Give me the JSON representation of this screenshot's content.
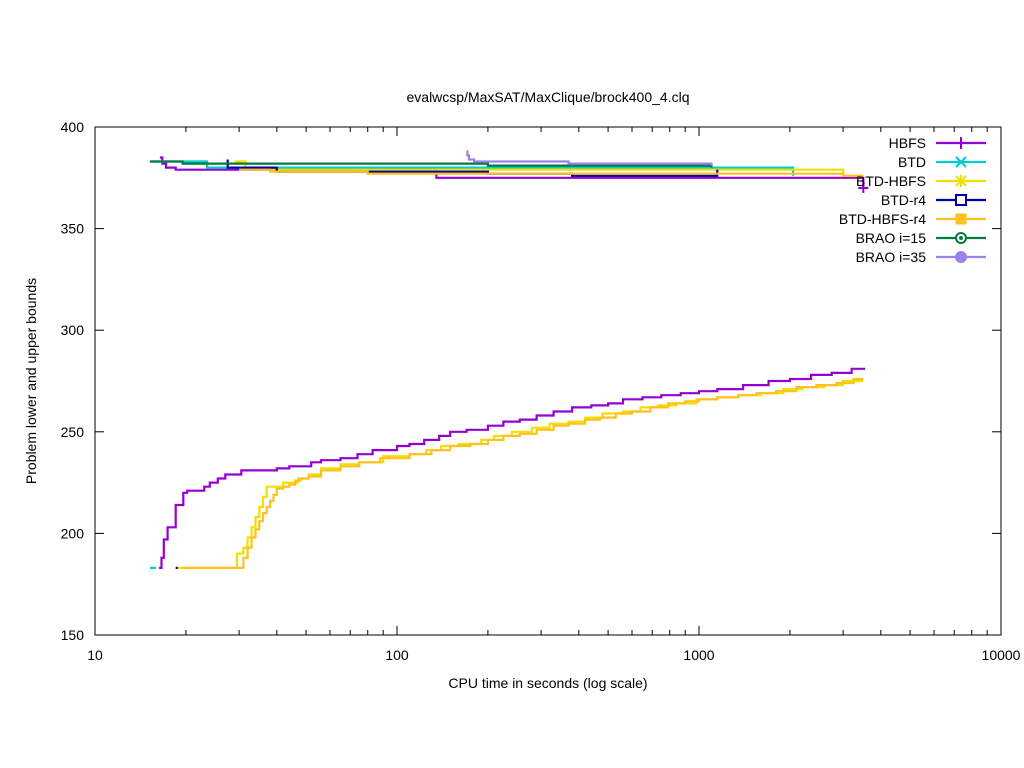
{
  "chart_data": {
    "type": "line",
    "title": "evalwcsp/MaxSAT/MaxClique/brock400_4.clq",
    "xlabel": "CPU time in seconds (log scale)",
    "ylabel": "Problem lower and upper bounds",
    "xscale": "log",
    "xlim": [
      10,
      10000
    ],
    "ylim": [
      150,
      400
    ],
    "xticks": [
      10,
      100,
      1000,
      10000
    ],
    "xtick_labels": [
      "10",
      "100",
      "1000",
      "10000"
    ],
    "yticks": [
      150,
      200,
      250,
      300,
      350,
      400
    ],
    "ytick_labels": [
      "150",
      "200",
      "250",
      "300",
      "350",
      "400"
    ],
    "grid": false,
    "legend_position": "top-right",
    "series": [
      {
        "name": "HBFS",
        "color": "#9400d3",
        "marker": "plus",
        "upper": [
          [
            16.4,
            385
          ],
          [
            16.7,
            382
          ],
          [
            17.2,
            380
          ],
          [
            18.5,
            379
          ],
          [
            135,
            379
          ],
          [
            135,
            375
          ],
          [
            3500,
            375
          ],
          [
            3500,
            370
          ]
        ],
        "lower": [
          [
            16.3,
            183
          ],
          [
            16.6,
            188
          ],
          [
            16.9,
            197
          ],
          [
            17.4,
            203
          ],
          [
            18.5,
            214
          ],
          [
            19.6,
            220
          ],
          [
            20.2,
            221
          ],
          [
            23,
            221
          ],
          [
            23,
            223
          ],
          [
            24,
            225
          ],
          [
            25.5,
            227
          ],
          [
            27,
            229
          ],
          [
            30.5,
            229
          ],
          [
            30.5,
            231
          ],
          [
            40,
            231
          ],
          [
            40,
            232
          ],
          [
            44,
            233
          ],
          [
            52,
            233
          ],
          [
            52,
            235
          ],
          [
            56,
            235
          ],
          [
            56,
            236
          ],
          [
            65,
            237
          ],
          [
            74,
            237
          ],
          [
            74,
            239
          ],
          [
            83,
            239
          ],
          [
            83,
            241
          ],
          [
            94,
            241
          ],
          [
            100,
            242
          ],
          [
            100,
            243
          ],
          [
            110,
            243
          ],
          [
            110,
            244
          ],
          [
            123,
            244
          ],
          [
            123,
            246
          ],
          [
            138,
            246
          ],
          [
            138,
            248
          ],
          [
            150,
            248
          ],
          [
            150,
            250
          ],
          [
            170,
            250
          ],
          [
            170,
            251
          ],
          [
            200,
            251
          ],
          [
            200,
            253
          ],
          [
            225,
            253
          ],
          [
            225,
            255
          ],
          [
            255,
            255
          ],
          [
            255,
            256
          ],
          [
            290,
            256
          ],
          [
            290,
            258
          ],
          [
            330,
            258
          ],
          [
            330,
            260
          ],
          [
            380,
            260
          ],
          [
            380,
            262
          ],
          [
            440,
            262
          ],
          [
            440,
            263
          ],
          [
            500,
            263
          ],
          [
            500,
            264
          ],
          [
            560,
            264
          ],
          [
            560,
            266
          ],
          [
            650,
            266
          ],
          [
            650,
            267
          ],
          [
            750,
            267
          ],
          [
            750,
            268
          ],
          [
            870,
            268
          ],
          [
            870,
            269
          ],
          [
            1000,
            269
          ],
          [
            1000,
            270
          ],
          [
            1150,
            270
          ],
          [
            1150,
            271
          ],
          [
            1400,
            271
          ],
          [
            1400,
            273
          ],
          [
            1700,
            273
          ],
          [
            1700,
            275
          ],
          [
            2000,
            275
          ],
          [
            2000,
            276
          ],
          [
            2350,
            276
          ],
          [
            2350,
            278
          ],
          [
            2750,
            278
          ],
          [
            2750,
            279
          ],
          [
            3200,
            279
          ],
          [
            3200,
            281
          ],
          [
            3550,
            281
          ]
        ]
      },
      {
        "name": "BTD",
        "color": "#00cccc",
        "marker": "x",
        "upper": [
          [
            15.2,
            383
          ],
          [
            23.5,
            383
          ],
          [
            23.5,
            380
          ],
          [
            2050,
            380
          ],
          [
            2050,
            376
          ]
        ],
        "lower": [
          [
            15.2,
            183
          ],
          [
            15.9,
            183
          ]
        ]
      },
      {
        "name": "BTD-HBFS",
        "color": "#f0e000",
        "marker": "star",
        "upper": [
          [
            29,
            383
          ],
          [
            31.5,
            383
          ],
          [
            31.5,
            380
          ],
          [
            34,
            379
          ],
          [
            3000,
            379
          ],
          [
            3000,
            376
          ],
          [
            3500,
            376
          ]
        ],
        "lower": [
          [
            18.5,
            183
          ],
          [
            29.5,
            183
          ],
          [
            29.5,
            190
          ],
          [
            31,
            193
          ],
          [
            32,
            198
          ],
          [
            33,
            203
          ],
          [
            34,
            208
          ],
          [
            35,
            213
          ],
          [
            36,
            218
          ],
          [
            37,
            223
          ],
          [
            42,
            223
          ],
          [
            42,
            225
          ],
          [
            47,
            227
          ],
          [
            51,
            229
          ],
          [
            56,
            230
          ],
          [
            56,
            232
          ],
          [
            65,
            232
          ],
          [
            65,
            234
          ],
          [
            75,
            235
          ],
          [
            90,
            236
          ],
          [
            90,
            238
          ],
          [
            110,
            238
          ],
          [
            110,
            239
          ],
          [
            125,
            239
          ],
          [
            125,
            241
          ],
          [
            140,
            241
          ],
          [
            140,
            243
          ],
          [
            160,
            243
          ],
          [
            160,
            244
          ],
          [
            190,
            244
          ],
          [
            190,
            246
          ],
          [
            210,
            246
          ],
          [
            210,
            248
          ],
          [
            240,
            248
          ],
          [
            240,
            250
          ],
          [
            280,
            250
          ],
          [
            280,
            252
          ],
          [
            320,
            252
          ],
          [
            320,
            254
          ],
          [
            370,
            254
          ],
          [
            370,
            255
          ],
          [
            420,
            255
          ],
          [
            420,
            257
          ],
          [
            480,
            257
          ],
          [
            480,
            259
          ],
          [
            560,
            259
          ],
          [
            560,
            260
          ],
          [
            640,
            260
          ],
          [
            640,
            262
          ],
          [
            730,
            262
          ],
          [
            730,
            263
          ],
          [
            840,
            263
          ],
          [
            840,
            264
          ],
          [
            980,
            264
          ],
          [
            980,
            266
          ],
          [
            1150,
            266
          ],
          [
            1150,
            267
          ],
          [
            1350,
            267
          ],
          [
            1350,
            268
          ],
          [
            1600,
            268
          ],
          [
            1600,
            269
          ],
          [
            1900,
            269
          ],
          [
            1900,
            271
          ],
          [
            2200,
            271
          ],
          [
            2200,
            272
          ],
          [
            2600,
            272
          ],
          [
            2600,
            273
          ],
          [
            3000,
            273
          ],
          [
            3000,
            275
          ],
          [
            3500,
            275
          ]
        ]
      },
      {
        "name": "BTD-r4",
        "color": "#0000aa",
        "marker": "square",
        "upper": [
          [
            27.5,
            384
          ],
          [
            27.5,
            380
          ],
          [
            40,
            378
          ],
          [
            200,
            378
          ],
          [
            200,
            377
          ],
          [
            380,
            377
          ],
          [
            380,
            376
          ],
          [
            1150,
            376
          ],
          [
            1150,
            379
          ]
        ],
        "lower": [
          [
            18.5,
            183
          ],
          [
            18.8,
            183
          ]
        ]
      },
      {
        "name": "BTD-HBFS-r4",
        "color": "#ffc020",
        "marker": "filled-square",
        "upper": [
          [
            30,
            379
          ],
          [
            38,
            378
          ],
          [
            80,
            378
          ],
          [
            80,
            377
          ],
          [
            3000,
            377
          ],
          [
            3000,
            376
          ],
          [
            3500,
            376
          ]
        ],
        "lower": [
          [
            19.5,
            183
          ],
          [
            31,
            183
          ],
          [
            31,
            188
          ],
          [
            32,
            193
          ],
          [
            33,
            198
          ],
          [
            34,
            202
          ],
          [
            35,
            206
          ],
          [
            36,
            210
          ],
          [
            37,
            213
          ],
          [
            38,
            216
          ],
          [
            39,
            219
          ],
          [
            40,
            222
          ],
          [
            42,
            223
          ],
          [
            44,
            224
          ],
          [
            46,
            226
          ],
          [
            48,
            227
          ],
          [
            51,
            228
          ],
          [
            56,
            229
          ],
          [
            56,
            231
          ],
          [
            65,
            231
          ],
          [
            65,
            233
          ],
          [
            75,
            233
          ],
          [
            75,
            235
          ],
          [
            88,
            236
          ],
          [
            88,
            237
          ],
          [
            110,
            238
          ],
          [
            110,
            239
          ],
          [
            130,
            240
          ],
          [
            130,
            241
          ],
          [
            150,
            241
          ],
          [
            150,
            243
          ],
          [
            175,
            243
          ],
          [
            175,
            244
          ],
          [
            200,
            244
          ],
          [
            200,
            246
          ],
          [
            225,
            246
          ],
          [
            225,
            248
          ],
          [
            255,
            248
          ],
          [
            255,
            249
          ],
          [
            290,
            249
          ],
          [
            290,
            251
          ],
          [
            330,
            251
          ],
          [
            330,
            253
          ],
          [
            370,
            253
          ],
          [
            370,
            254
          ],
          [
            420,
            254
          ],
          [
            420,
            256
          ],
          [
            470,
            256
          ],
          [
            470,
            257
          ],
          [
            530,
            257
          ],
          [
            530,
            259
          ],
          [
            600,
            259
          ],
          [
            600,
            260
          ],
          [
            690,
            260
          ],
          [
            690,
            262
          ],
          [
            790,
            262
          ],
          [
            790,
            264
          ],
          [
            900,
            264
          ],
          [
            900,
            265
          ],
          [
            1000,
            265
          ],
          [
            1000,
            266
          ],
          [
            1150,
            266
          ],
          [
            1150,
            267
          ],
          [
            1350,
            267
          ],
          [
            1350,
            268
          ],
          [
            1550,
            268
          ],
          [
            1550,
            269
          ],
          [
            1800,
            269
          ],
          [
            1800,
            270
          ],
          [
            2100,
            270
          ],
          [
            2100,
            272
          ],
          [
            2450,
            272
          ],
          [
            2450,
            273
          ],
          [
            2850,
            273
          ],
          [
            2850,
            274
          ],
          [
            3250,
            274
          ],
          [
            3250,
            276
          ],
          [
            3500,
            276
          ]
        ]
      },
      {
        "name": "BRAO i=15",
        "color": "#007a3d",
        "marker": "circle",
        "upper": [
          [
            15.2,
            383
          ],
          [
            19.5,
            383
          ],
          [
            19.5,
            382
          ],
          [
            200,
            382
          ],
          [
            200,
            381
          ],
          [
            1100,
            381
          ],
          [
            1100,
            380
          ]
        ],
        "lower": []
      },
      {
        "name": "BRAO i=35",
        "color": "#9b80ee",
        "marker": "filled-circle",
        "upper": [
          [
            170,
            388
          ],
          [
            171,
            386
          ],
          [
            173,
            384
          ],
          [
            180,
            383
          ],
          [
            370,
            383
          ],
          [
            370,
            382
          ],
          [
            1100,
            382
          ],
          [
            1100,
            381
          ]
        ],
        "lower": []
      }
    ]
  }
}
